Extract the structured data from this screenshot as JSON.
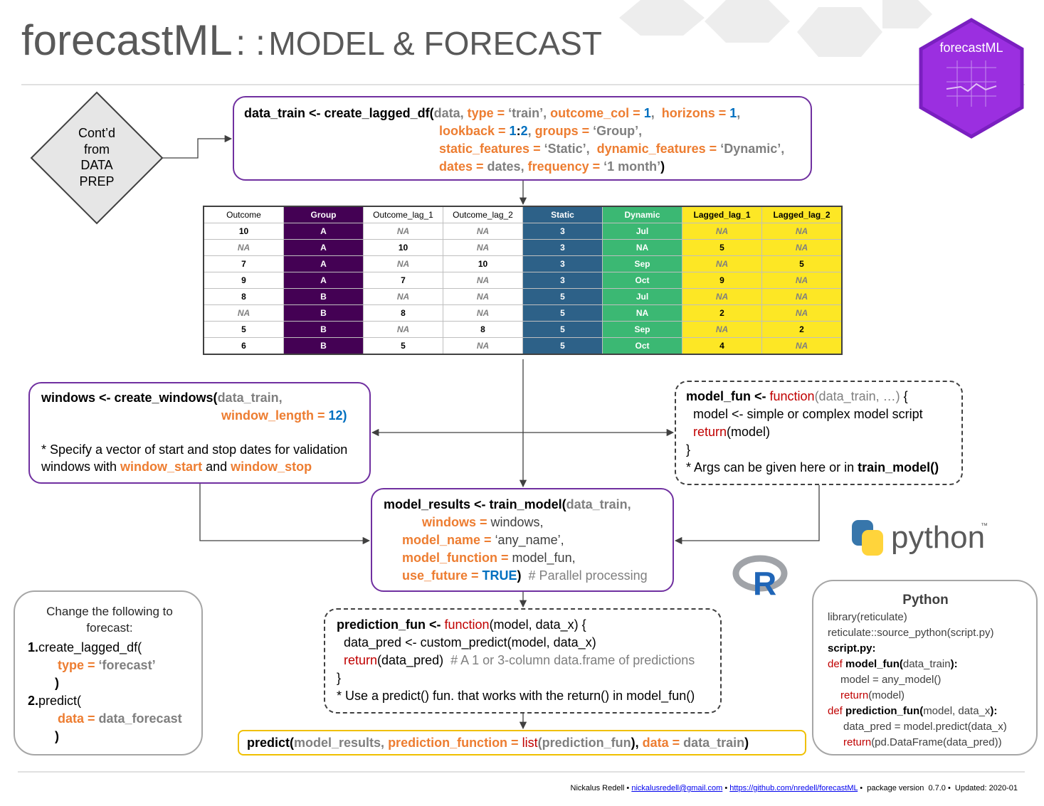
{
  "header": {
    "title": "forecastML",
    "separator": ": :",
    "subtitle": "MODEL & FORECAST",
    "logo": "forecastML"
  },
  "start_node": {
    "lines": [
      "Cont’d",
      "from",
      "DATA",
      "PREP"
    ]
  },
  "create_lagged_df": {
    "lines": [
      [
        "data_train <- create_lagged_df(",
        "data, ",
        "type = ",
        "‘train’, ",
        "outcome_col = ",
        "1",
        ",  ",
        "horizons = ",
        "1",
        ","
      ],
      [
        "lookback = ",
        "1",
        ":",
        "2",
        ", ",
        "groups = ",
        "‘Group’,"
      ],
      [
        "static_features = ",
        "‘Static’,  ",
        "dynamic_features = ",
        "‘Dynamic’,"
      ],
      [
        "dates = ",
        "dates, ",
        "frequency = ",
        "‘1 month’",
        ")"
      ]
    ]
  },
  "table": {
    "columns": [
      "Outcome",
      "Group",
      "Outcome_lag_1",
      "Outcome_lag_2",
      "Static",
      "Dynamic",
      "Lagged_lag_1",
      "Lagged_lag_2"
    ],
    "rows": [
      [
        10,
        "A",
        "NA",
        "NA",
        3,
        "Jul",
        "NA",
        "NA"
      ],
      [
        "NA",
        "A",
        10,
        "NA",
        3,
        "NA",
        5,
        "NA"
      ],
      [
        7,
        "A",
        "NA",
        10,
        3,
        "Sep",
        "NA",
        5
      ],
      [
        9,
        "A",
        7,
        "NA",
        3,
        "Oct",
        9,
        "NA"
      ],
      [
        8,
        "B",
        "NA",
        "NA",
        5,
        "Jul",
        "NA",
        "NA"
      ],
      [
        "NA",
        "B",
        8,
        "NA",
        5,
        "NA",
        2,
        "NA"
      ],
      [
        5,
        "B",
        "NA",
        8,
        5,
        "Sep",
        "NA",
        2
      ],
      [
        6,
        "B",
        5,
        "NA",
        5,
        "Oct",
        4,
        "NA"
      ]
    ]
  },
  "create_windows": {
    "lines": [
      [
        "windows <- create_windows(",
        "data_train,"
      ],
      [
        "window_length = ",
        "12",
        ")"
      ],
      [
        "* Specify a vector of start and stop dates for validation"
      ],
      [
        "windows with ",
        "window_start",
        " and ",
        "window_stop"
      ]
    ]
  },
  "model_fun": {
    "lines": [
      [
        "model_fun <- ",
        "function",
        "(data_train, …) ",
        "{"
      ],
      [
        "model <- simple or complex model script"
      ],
      [
        "return",
        "(model)"
      ],
      [
        "}"
      ],
      [
        "* Args can be given here or in ",
        "train_model()"
      ]
    ]
  },
  "train_model": {
    "lines": [
      [
        "model_results <- train_model(",
        "data_train,"
      ],
      [
        "windows = ",
        "windows,"
      ],
      [
        "model_name = ",
        "‘any_name’,"
      ],
      [
        "model_function = ",
        "model_fun,"
      ],
      [
        "use_future = ",
        "TRUE",
        ")",
        "  # Parallel processing"
      ]
    ]
  },
  "prediction_fun": {
    "lines": [
      [
        "prediction_fun <- ",
        "function",
        "(model, data_x) {"
      ],
      [
        "data_pred <- custom_predict(model, data_x)"
      ],
      [
        "return",
        "(data_pred)  ",
        "# A 1 or 3-column data.frame of predictions"
      ],
      [
        "}"
      ],
      [
        "* Use a predict() fun. that works with the return() in model_fun()"
      ]
    ]
  },
  "predict": {
    "lines": [
      [
        "predict(",
        "model_results, ",
        "prediction_function = ",
        "list",
        "(",
        "prediction_fun",
        "), ",
        "data = ",
        "data_train",
        ")"
      ]
    ]
  },
  "change": {
    "title": "Change the following to forecast:",
    "lines": [
      [
        "1.",
        "create_lagged_df("
      ],
      [
        "type = ",
        "‘forecast’"
      ],
      [
        ")"
      ],
      [
        "2.",
        "predict("
      ],
      [
        "data = ",
        "data_forecast"
      ],
      [
        ")"
      ]
    ]
  },
  "python_box": {
    "title": "Python",
    "lines": [
      [
        "library(reticulate)"
      ],
      [
        "reticulate::source_python(script.py)"
      ],
      [
        "script.py:"
      ],
      [
        "def",
        " model_fun(",
        "data_train",
        "):"
      ],
      [
        "model = any_model()"
      ],
      [
        "return",
        "(model)"
      ],
      [
        "def",
        " prediction_fun(",
        "model, data_x",
        "):"
      ],
      [
        "data_pred = model.predict(data_x)"
      ],
      [
        "return",
        "(pd.DataFrame(data_pred))"
      ]
    ]
  },
  "logos": {
    "python": "python",
    "trademark": "™",
    "r": "R"
  },
  "footer": {
    "segments": [
      "Nickalus Redell • ",
      "nickalusredell@gmail.com",
      " • ",
      "https://github.com/nredell/forecastML",
      " •  package version  0.7.0 •  Updated: 2020-01"
    ]
  }
}
